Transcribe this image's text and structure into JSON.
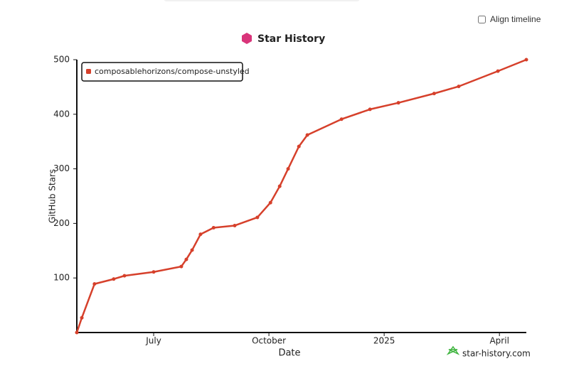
{
  "chart_data": {
    "type": "line",
    "title": "Star History",
    "x_label": "Date",
    "y_label": "GitHub Stars",
    "toggle": "Align timeline",
    "watermark": "star-history.com",
    "x": [
      0,
      0.13,
      0.46,
      0.96,
      1.24,
      2.0,
      2.72,
      2.85,
      3.0,
      3.22,
      3.56,
      4.11,
      4.7,
      5.04,
      5.28,
      5.5,
      5.78,
      6.0,
      6.89,
      7.63,
      8.37,
      9.3,
      9.94,
      10.96,
      11.7
    ],
    "series": [
      {
        "name": "composablehorizons/compose-unstyled",
        "color": "#d6402b",
        "values": [
          0,
          27,
          89,
          98,
          104,
          111,
          121,
          134,
          151,
          180,
          192,
          196,
          211,
          238,
          268,
          300,
          341,
          362,
          391,
          409,
          421,
          438,
          451,
          479,
          500
        ]
      }
    ],
    "xlim": [
      0,
      11.7
    ],
    "xticks": [
      {
        "value": 2,
        "label": "July"
      },
      {
        "value": 5,
        "label": "October"
      },
      {
        "value": 8,
        "label": "2025"
      },
      {
        "value": 11,
        "label": "April"
      }
    ],
    "ylim": [
      0,
      500
    ],
    "yticks": [
      100,
      200,
      300,
      400,
      500
    ],
    "grid": false,
    "legend": "top-left"
  }
}
